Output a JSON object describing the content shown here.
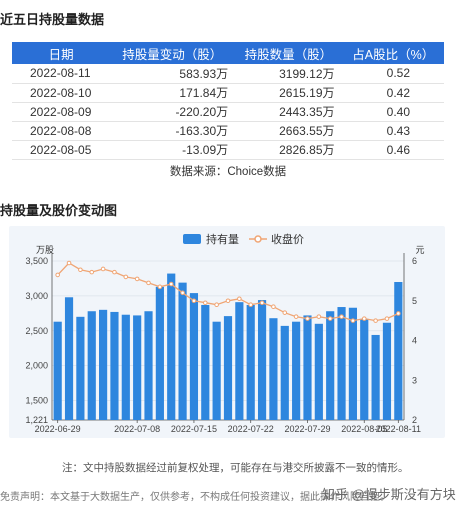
{
  "section1_title": "近五日持股量数据",
  "table": {
    "headers": [
      "日期",
      "持股量变动（股）",
      "持股数量（股）",
      "占A股比（%）"
    ],
    "rows": [
      {
        "date": "2022-08-11",
        "change": "583.93万",
        "dir": "up",
        "shares": "3199.12万",
        "ratio": "0.52"
      },
      {
        "date": "2022-08-10",
        "change": "171.84万",
        "dir": "up",
        "shares": "2615.19万",
        "ratio": "0.42"
      },
      {
        "date": "2022-08-09",
        "change": "-220.20万",
        "dir": "down",
        "shares": "2443.35万",
        "ratio": "0.40"
      },
      {
        "date": "2022-08-08",
        "change": "-163.30万",
        "dir": "down",
        "shares": "2663.55万",
        "ratio": "0.43"
      },
      {
        "date": "2022-08-05",
        "change": "-13.09万",
        "dir": "down",
        "shares": "2826.85万",
        "ratio": "0.46"
      }
    ]
  },
  "source": "数据来源：Choice数据",
  "section2_title": "持股量及股价变动图",
  "colors": {
    "bar": "#2e86de",
    "line": "#f0a574",
    "header": "#2a6fd6",
    "up": "#e0302b",
    "down": "#1a9e45"
  },
  "chart_data": {
    "type": "bar",
    "legend": [
      "持有量",
      "收盘价"
    ],
    "legend_position": "top-center",
    "ylabel_left": "万股",
    "ylabel_right": "元",
    "left_ticks": [
      "3,500",
      "3,000",
      "2,500",
      "2,000",
      "1,500",
      "1,221"
    ],
    "left_ylim": [
      1221,
      3500
    ],
    "right_ticks": [
      "6",
      "5",
      "4",
      "3",
      "2"
    ],
    "right_ylim": [
      2,
      6
    ],
    "x_tick_labels": [
      "2022-06-29",
      "2022-07-08",
      "2022-07-15",
      "2022-07-22",
      "2022-07-29",
      "2022-08-05",
      "2022-08-11"
    ],
    "series": [
      {
        "name": "持有量",
        "type": "bar",
        "values": [
          2630,
          2980,
          2700,
          2780,
          2800,
          2770,
          2730,
          2720,
          2780,
          3130,
          3320,
          3190,
          3040,
          2870,
          2630,
          2710,
          2910,
          2870,
          2940,
          2680,
          2570,
          2630,
          2720,
          2600,
          2780,
          2840,
          2830,
          2670,
          2440,
          2615,
          3199
        ]
      },
      {
        "name": "收盘价",
        "type": "line",
        "values": [
          5.65,
          5.95,
          5.78,
          5.72,
          5.8,
          5.72,
          5.6,
          5.55,
          5.45,
          5.35,
          5.42,
          5.2,
          5.0,
          4.95,
          4.9,
          5.0,
          5.05,
          4.9,
          4.95,
          4.85,
          4.7,
          4.6,
          4.55,
          4.6,
          4.55,
          4.6,
          4.5,
          4.55,
          4.5,
          4.55,
          4.68
        ]
      }
    ]
  },
  "note": "注：文中持股数据经过前复权处理，可能存在与港交所披露不一致的情形。",
  "disclaimer": "免责声明：本文基于大数据生产，仅供参考，不构成任何投资建议，据此操作风险自担。",
  "watermark": "知乎 @慢步斯没有方块"
}
